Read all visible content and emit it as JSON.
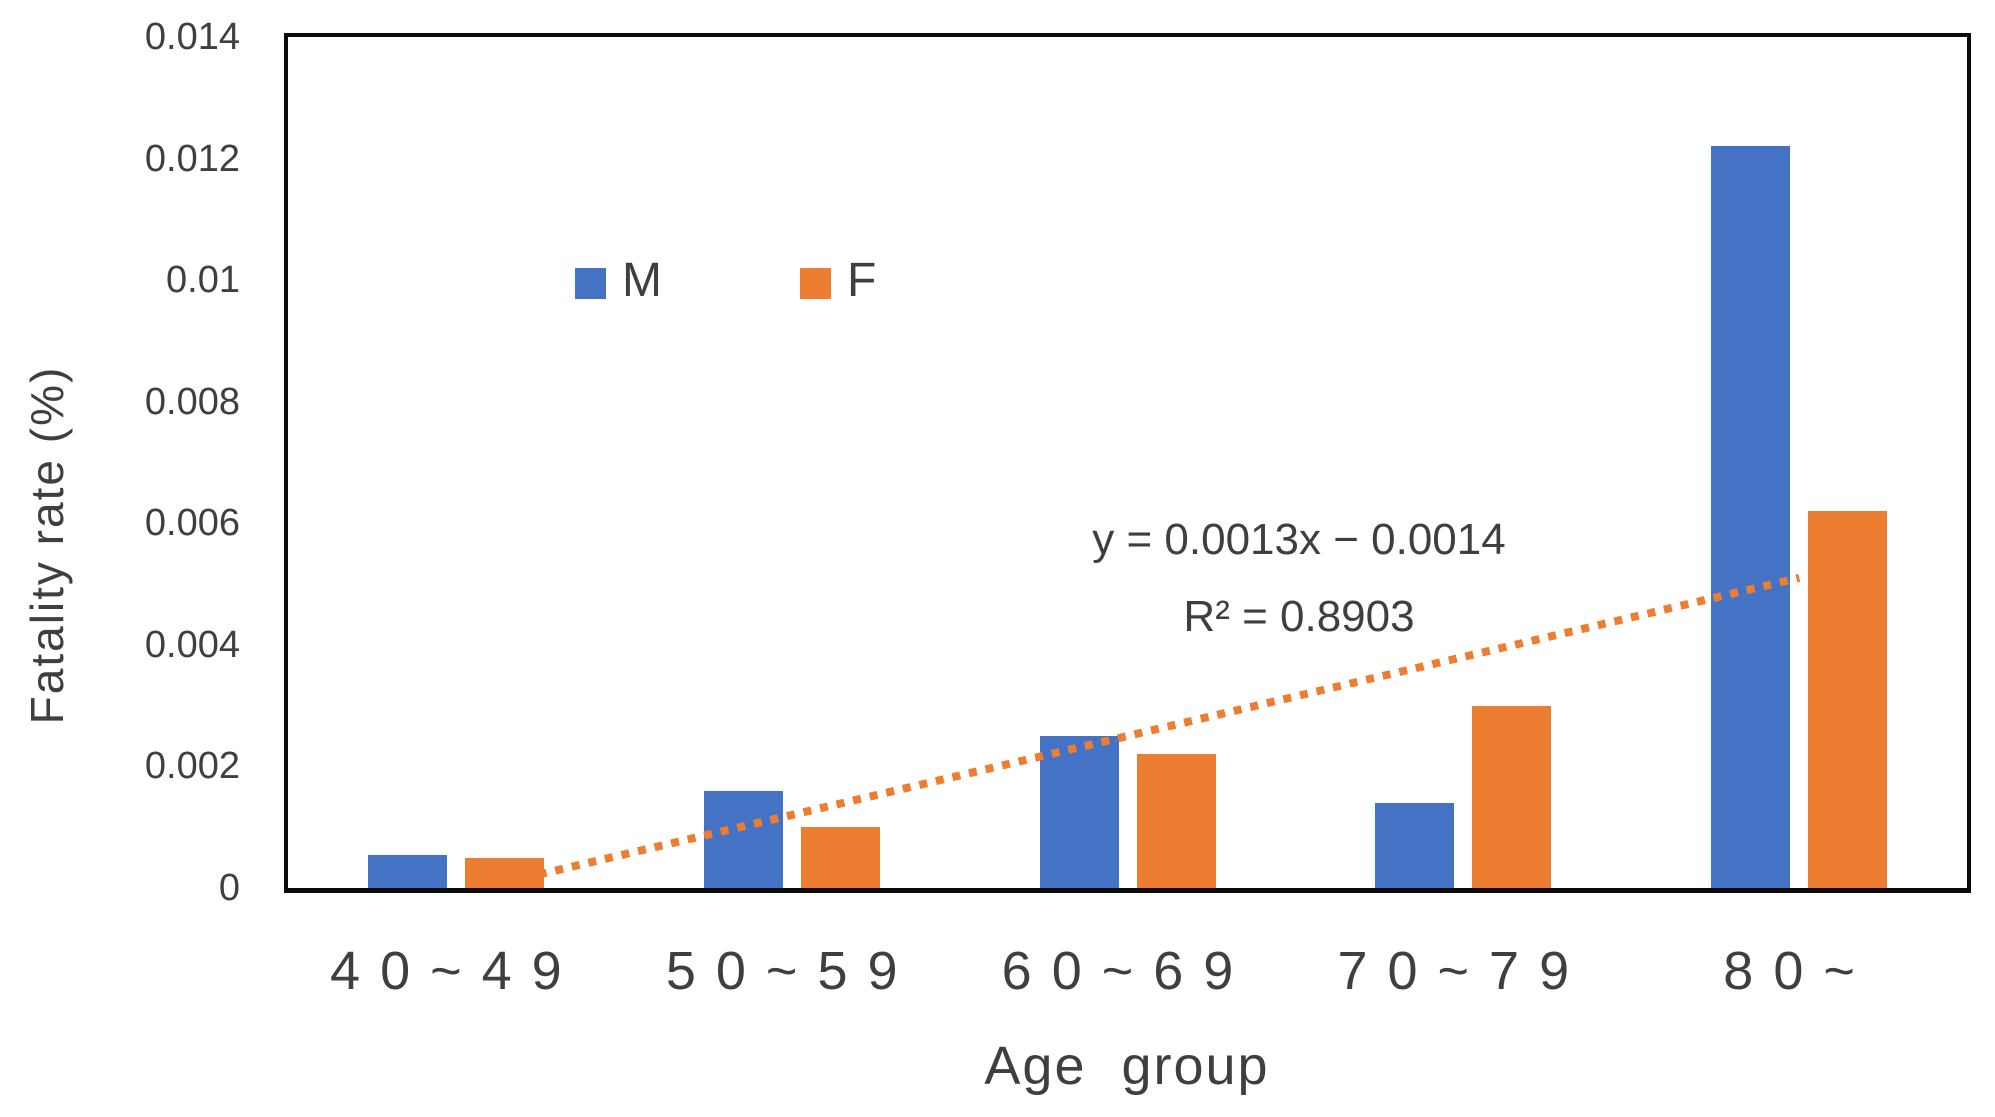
{
  "chart_data": {
    "type": "bar",
    "title": "",
    "xlabel": "Age group",
    "ylabel": "Fatality rate (%)",
    "categories": [
      "40~49",
      "50~59",
      "60~69",
      "70~79",
      "80~"
    ],
    "series": [
      {
        "name": "M",
        "color": "#4472C4",
        "values": [
          0.00055,
          0.0016,
          0.0025,
          0.0014,
          0.0122
        ]
      },
      {
        "name": "F",
        "color": "#ED7D31",
        "values": [
          0.0005,
          0.001,
          0.0022,
          0.003,
          0.0062
        ]
      }
    ],
    "ylim": [
      0,
      0.014
    ],
    "yticks": [
      0,
      0.002,
      0.004,
      0.006,
      0.008,
      0.01,
      0.012,
      0.014
    ],
    "ytick_labels": [
      "0",
      "0.002",
      "0.004",
      "0.006",
      "0.008",
      "0.01",
      "0.012",
      "0.014"
    ],
    "grid": false,
    "plot_border_color": "#0b0b0b",
    "legend": {
      "position": "inside-top-left",
      "items": [
        {
          "label": "M",
          "color": "#4472C4"
        },
        {
          "label": "F",
          "color": "#ED7D31"
        }
      ]
    },
    "trendline": {
      "series": "F",
      "slope": 0.0013,
      "intercept": -0.0014,
      "x_start": 1,
      "x_end": 5,
      "style": "dotted",
      "color": "#ED7D31",
      "equation_label": "y = 0.0013x − 0.0014",
      "r_squared_label": "R² = 0.8903"
    }
  }
}
